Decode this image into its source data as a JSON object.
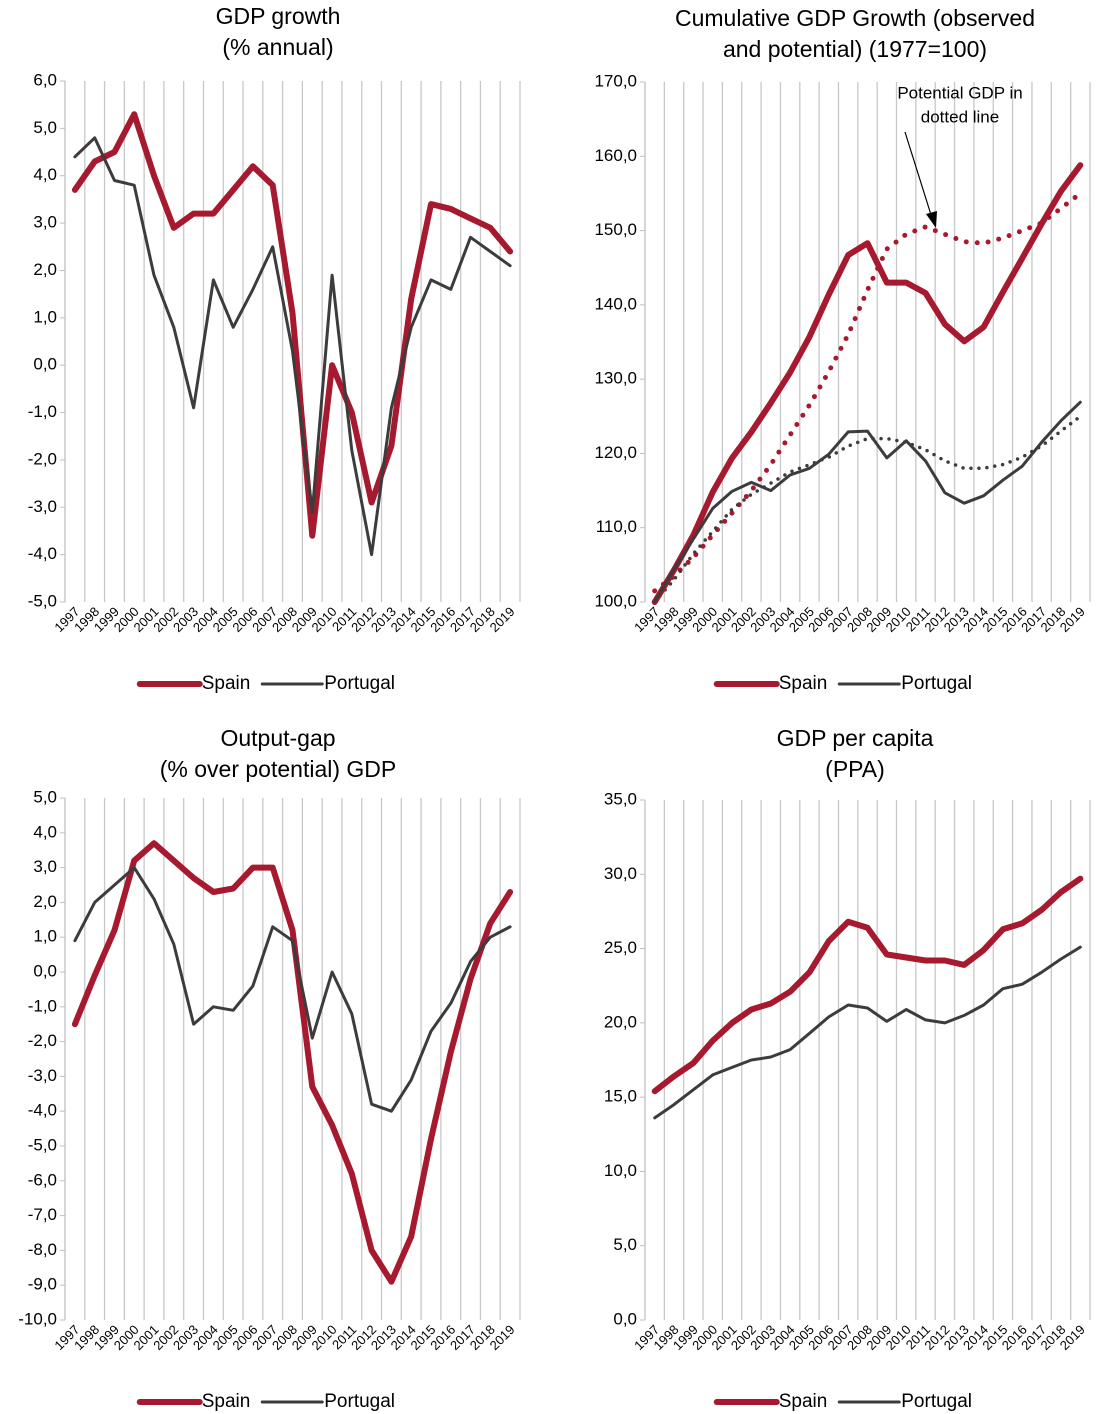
{
  "chart_data": [
    {
      "type": "line",
      "title": [
        "GDP growth",
        "(% annual)"
      ],
      "categories": [
        "1997",
        "1998",
        "1999",
        "2000",
        "2001",
        "2002",
        "2003",
        "2004",
        "2005",
        "2006",
        "2007",
        "2008",
        "2009",
        "2010",
        "2011",
        "2012",
        "2013",
        "2014",
        "2015",
        "2016",
        "2017",
        "2018",
        "2019"
      ],
      "ylim": [
        -5,
        6
      ],
      "yticks": [
        {
          "value": -5,
          "label": "-5,0"
        },
        {
          "value": -4,
          "label": "-4,0"
        },
        {
          "value": -3,
          "label": "-3,0"
        },
        {
          "value": -2,
          "label": "-2,0"
        },
        {
          "value": -1,
          "label": "-1,0"
        },
        {
          "value": 0,
          "label": "0,0"
        },
        {
          "value": 1,
          "label": "1,0"
        },
        {
          "value": 2,
          "label": "2,0"
        },
        {
          "value": 3,
          "label": "3,0"
        },
        {
          "value": 4,
          "label": "4,0"
        },
        {
          "value": 5,
          "label": "5,0"
        },
        {
          "value": 6,
          "label": "6,0"
        }
      ],
      "grid": "x",
      "legend": "bottom",
      "series": [
        {
          "name": "Spain",
          "color": "#a6192e",
          "values": [
            3.7,
            4.3,
            4.5,
            5.3,
            4.0,
            2.9,
            3.2,
            3.2,
            3.7,
            4.2,
            3.8,
            1.1,
            -3.6,
            0.0,
            -1.0,
            -2.9,
            -1.7,
            1.4,
            3.4,
            3.3,
            3.1,
            2.9,
            2.4
          ]
        },
        {
          "name": "Portugal",
          "color": "#3c3c3c",
          "values": [
            4.4,
            4.8,
            3.9,
            3.8,
            1.9,
            0.8,
            -0.9,
            1.8,
            0.8,
            1.6,
            2.5,
            0.3,
            -3.1,
            1.9,
            -1.8,
            -4.0,
            -0.9,
            0.8,
            1.8,
            1.6,
            2.7,
            2.4,
            2.1
          ]
        }
      ]
    },
    {
      "type": "line",
      "title": [
        "Cumulative GDP Growth (observed",
        "and potential) (1977=100)"
      ],
      "annotation": [
        "Potential GDP in",
        "dotted line"
      ],
      "categories": [
        "1997",
        "1998",
        "1999",
        "2000",
        "2001",
        "2002",
        "2003",
        "2004",
        "2005",
        "2006",
        "2007",
        "2008",
        "2009",
        "2010",
        "2011",
        "2012",
        "2013",
        "2014",
        "2015",
        "2016",
        "2017",
        "2018",
        "2019"
      ],
      "ylim": [
        100,
        170
      ],
      "yticks": [
        {
          "value": 100,
          "label": "100,0"
        },
        {
          "value": 110,
          "label": "110,0"
        },
        {
          "value": 120,
          "label": "120,0"
        },
        {
          "value": 130,
          "label": "130,0"
        },
        {
          "value": 140,
          "label": "140,0"
        },
        {
          "value": 150,
          "label": "150,0"
        },
        {
          "value": 160,
          "label": "160,0"
        },
        {
          "value": 170,
          "label": "170,0"
        }
      ],
      "grid": "x",
      "legend": "bottom",
      "series": [
        {
          "color": "#a6192e",
          "style": "dotted",
          "values": [
            101.5,
            103.5,
            106,
            109,
            112,
            115,
            118.5,
            122.5,
            126.5,
            131,
            136,
            142,
            147.5,
            149.5,
            150.5,
            149.5,
            148.5,
            148.3,
            149,
            150,
            151,
            153,
            155
          ]
        },
        {
          "color": "#3c3c3c",
          "style": "dotted",
          "values": [
            100,
            103,
            106.5,
            109.5,
            112.5,
            114.5,
            116,
            117.5,
            118.5,
            119.5,
            121,
            122,
            122,
            121.5,
            120.5,
            119,
            118,
            118,
            118.5,
            119.5,
            121,
            123,
            125
          ]
        },
        {
          "name": "Spain",
          "color": "#a6192e",
          "values": [
            100,
            104.3,
            109.0,
            114.8,
            119.4,
            122.9,
            126.8,
            130.9,
            135.7,
            141.4,
            146.7,
            148.3,
            143.0,
            143.0,
            141.6,
            137.4,
            135.1,
            137.0,
            141.7,
            146.3,
            150.9,
            155.3,
            158.8
          ]
        },
        {
          "name": "Portugal",
          "color": "#3c3c3c",
          "values": [
            100,
            104.4,
            108.5,
            112.6,
            114.9,
            116.1,
            115.0,
            117.1,
            118.0,
            119.9,
            122.9,
            123.0,
            119.4,
            121.7,
            119.0,
            114.7,
            113.3,
            114.3,
            116.4,
            118.3,
            121.5,
            124.4,
            126.9
          ]
        }
      ]
    },
    {
      "type": "line",
      "title": [
        "Output-gap",
        "(% over potential) GDP"
      ],
      "categories": [
        "1997",
        "1998",
        "1999",
        "2000",
        "2001",
        "2002",
        "2003",
        "2004",
        "2005",
        "2006",
        "2007",
        "2008",
        "2009",
        "2010",
        "2011",
        "2012",
        "2013",
        "2014",
        "2015",
        "2016",
        "2017",
        "2018",
        "2019"
      ],
      "ylim": [
        -10,
        5
      ],
      "yticks": [
        {
          "value": -10,
          "label": "-10,0"
        },
        {
          "value": -9,
          "label": "-9,0"
        },
        {
          "value": -8,
          "label": "-8,0"
        },
        {
          "value": -7,
          "label": "-7,0"
        },
        {
          "value": -6,
          "label": "-6,0"
        },
        {
          "value": -5,
          "label": "-5,0"
        },
        {
          "value": -4,
          "label": "-4,0"
        },
        {
          "value": -3,
          "label": "-3,0"
        },
        {
          "value": -2,
          "label": "-2,0"
        },
        {
          "value": -1,
          "label": "-1,0"
        },
        {
          "value": 0,
          "label": "0,0"
        },
        {
          "value": 1,
          "label": "1,0"
        },
        {
          "value": 2,
          "label": "2,0"
        },
        {
          "value": 3,
          "label": "3,0"
        },
        {
          "value": 4,
          "label": "4,0"
        },
        {
          "value": 5,
          "label": "5,0"
        }
      ],
      "grid": "x",
      "legend": "bottom",
      "series": [
        {
          "name": "Spain",
          "color": "#a6192e",
          "values": [
            -1.5,
            -0.1,
            1.2,
            3.2,
            3.7,
            3.2,
            2.7,
            2.3,
            2.4,
            3.0,
            3.0,
            1.2,
            -3.3,
            -4.4,
            -5.8,
            -8.0,
            -8.9,
            -7.6,
            -4.8,
            -2.3,
            -0.2,
            1.4,
            2.3
          ]
        },
        {
          "name": "Portugal",
          "color": "#3c3c3c",
          "values": [
            0.9,
            2.0,
            2.5,
            3.0,
            2.1,
            0.8,
            -1.5,
            -1.0,
            -1.1,
            -0.4,
            1.3,
            0.9,
            -1.9,
            0.0,
            -1.2,
            -3.8,
            -4.0,
            -3.1,
            -1.7,
            -0.9,
            0.3,
            1.0,
            1.3
          ]
        }
      ]
    },
    {
      "type": "line",
      "title": [
        "GDP per capita",
        "(PPA)"
      ],
      "categories": [
        "1997",
        "1998",
        "1999",
        "2000",
        "2001",
        "2002",
        "2003",
        "2004",
        "2005",
        "2006",
        "2007",
        "2008",
        "2009",
        "2010",
        "2011",
        "2012",
        "2013",
        "2014",
        "2015",
        "2016",
        "2017",
        "2018",
        "2019"
      ],
      "ylim": [
        0,
        35
      ],
      "yticks": [
        {
          "value": 0,
          "label": "0,0"
        },
        {
          "value": 5,
          "label": "5,0"
        },
        {
          "value": 10,
          "label": "10,0"
        },
        {
          "value": 15,
          "label": "15,0"
        },
        {
          "value": 20,
          "label": "20,0"
        },
        {
          "value": 25,
          "label": "25,0"
        },
        {
          "value": 30,
          "label": "30,0"
        },
        {
          "value": 35,
          "label": "35,0"
        }
      ],
      "grid": "x",
      "legend": "bottom",
      "series": [
        {
          "name": "Spain",
          "color": "#a6192e",
          "values": [
            15.4,
            16.4,
            17.3,
            18.8,
            20.0,
            20.9,
            21.3,
            22.1,
            23.4,
            25.5,
            26.8,
            26.4,
            24.6,
            24.4,
            24.2,
            24.2,
            23.9,
            24.9,
            26.3,
            26.7,
            27.6,
            28.8,
            29.7
          ]
        },
        {
          "name": "Portugal",
          "color": "#3c3c3c",
          "values": [
            13.6,
            14.5,
            15.5,
            16.5,
            17.0,
            17.5,
            17.7,
            18.2,
            19.3,
            20.4,
            21.2,
            21.0,
            20.1,
            20.9,
            20.2,
            20.0,
            20.5,
            21.2,
            22.3,
            22.6,
            23.4,
            24.3,
            25.1
          ]
        }
      ]
    }
  ]
}
